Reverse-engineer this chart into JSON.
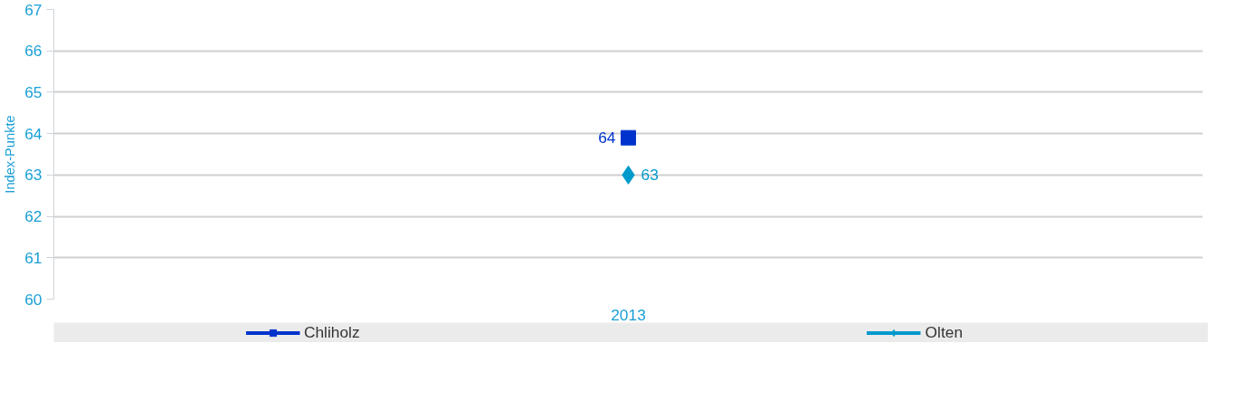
{
  "chart_data": {
    "type": "line",
    "ylabel": "Index-Punkte",
    "categories": [
      "2013"
    ],
    "ylim": [
      60,
      67
    ],
    "yticks": [
      60,
      61,
      62,
      63,
      64,
      65,
      66,
      67
    ],
    "grid": "y",
    "legend": "bottom",
    "series": [
      {
        "name": "Chliholz",
        "color": "#0033cc",
        "marker": "square",
        "values": [
          63.9
        ],
        "value_labels": [
          "64"
        ]
      },
      {
        "name": "Olten",
        "color": "#0099cc",
        "marker": "diamond",
        "values": [
          63
        ],
        "value_labels": [
          "63"
        ]
      }
    ]
  }
}
